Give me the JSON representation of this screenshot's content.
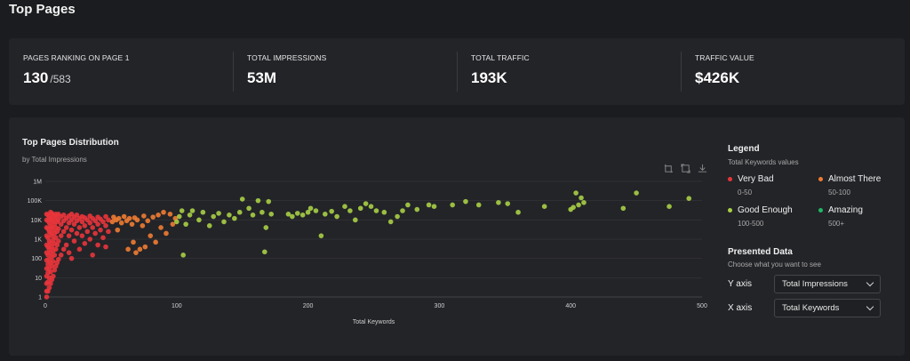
{
  "page": {
    "title": "Top Pages"
  },
  "stats": [
    {
      "label": "PAGES RANKING ON PAGE 1",
      "value": "130",
      "sub": "/583"
    },
    {
      "label": "TOTAL IMPRESSIONS",
      "value": "53M",
      "sub": ""
    },
    {
      "label": "TOTAL TRAFFIC",
      "value": "193K",
      "sub": ""
    },
    {
      "label": "TRAFFIC VALUE",
      "value": "$426K",
      "sub": ""
    }
  ],
  "distribution": {
    "title": "Top Pages Distribution",
    "subtitle": "by Total Impressions",
    "toolbar": [
      "zoom-select-icon",
      "zoom-reset-icon",
      "download-icon"
    ]
  },
  "legend": {
    "title": "Legend",
    "subtitle": "Total Keywords values",
    "items": [
      {
        "name": "Very Bad",
        "range": "0-50",
        "color": "#e8353b"
      },
      {
        "name": "Almost There",
        "range": "50-100",
        "color": "#f07c32"
      },
      {
        "name": "Good Enough",
        "range": "100-500",
        "color": "#a8cf45"
      },
      {
        "name": "Amazing",
        "range": "500+",
        "color": "#1fb866"
      }
    ]
  },
  "presented": {
    "title": "Presented Data",
    "subtitle": "Choose what you want to see",
    "y_label": "Y axis",
    "y_value": "Total Impressions",
    "x_label": "X axis",
    "x_value": "Total Keywords"
  },
  "chart_data": {
    "type": "scatter",
    "title": "Top Pages Distribution",
    "subtitle": "by Total Impressions",
    "xlabel": "Total Keywords",
    "ylabel": "",
    "xlim": [
      0,
      500
    ],
    "ylim": [
      1,
      1000000
    ],
    "y_scale": "log",
    "x_ticks": [
      0,
      100,
      200,
      300,
      400,
      500
    ],
    "y_ticks": [
      {
        "value": 1,
        "label": "1"
      },
      {
        "value": 10,
        "label": "10"
      },
      {
        "value": 100,
        "label": "100"
      },
      {
        "value": 1000,
        "label": "1K"
      },
      {
        "value": 10000,
        "label": "10K"
      },
      {
        "value": 100000,
        "label": "100K"
      },
      {
        "value": 1000000,
        "label": "1M"
      }
    ],
    "grid": true,
    "series": [
      {
        "color": "#e8353b",
        "points": [
          [
            1,
            1
          ],
          [
            1,
            2
          ],
          [
            1,
            5
          ],
          [
            1,
            12
          ],
          [
            1,
            30
          ],
          [
            1,
            80
          ],
          [
            1,
            200
          ],
          [
            1,
            500
          ],
          [
            1,
            1500
          ],
          [
            1,
            4000
          ],
          [
            1,
            10000
          ],
          [
            1,
            20000
          ],
          [
            2,
            2
          ],
          [
            2,
            6
          ],
          [
            2,
            18
          ],
          [
            2,
            50
          ],
          [
            2,
            150
          ],
          [
            2,
            400
          ],
          [
            2,
            1200
          ],
          [
            2,
            3500
          ],
          [
            2,
            9000
          ],
          [
            2,
            18000
          ],
          [
            3,
            3
          ],
          [
            3,
            10
          ],
          [
            3,
            30
          ],
          [
            3,
            90
          ],
          [
            3,
            300
          ],
          [
            3,
            800
          ],
          [
            3,
            2500
          ],
          [
            3,
            7000
          ],
          [
            3,
            15000
          ],
          [
            4,
            5
          ],
          [
            4,
            20
          ],
          [
            4,
            60
          ],
          [
            4,
            200
          ],
          [
            4,
            600
          ],
          [
            4,
            2000
          ],
          [
            4,
            5000
          ],
          [
            4,
            12000
          ],
          [
            4,
            25000
          ],
          [
            5,
            8
          ],
          [
            5,
            40
          ],
          [
            5,
            120
          ],
          [
            5,
            400
          ],
          [
            5,
            1500
          ],
          [
            5,
            4000
          ],
          [
            5,
            10000
          ],
          [
            5,
            22000
          ],
          [
            6,
            12
          ],
          [
            6,
            70
          ],
          [
            6,
            250
          ],
          [
            6,
            900
          ],
          [
            6,
            3000
          ],
          [
            6,
            8000
          ],
          [
            6,
            18000
          ],
          [
            7,
            25
          ],
          [
            7,
            150
          ],
          [
            7,
            600
          ],
          [
            7,
            2000
          ],
          [
            7,
            6000
          ],
          [
            7,
            15000
          ],
          [
            8,
            40
          ],
          [
            8,
            300
          ],
          [
            8,
            1200
          ],
          [
            8,
            4000
          ],
          [
            8,
            11000
          ],
          [
            8,
            20000
          ],
          [
            9,
            60
          ],
          [
            9,
            500
          ],
          [
            9,
            2500
          ],
          [
            9,
            8000
          ],
          [
            9,
            16000
          ],
          [
            10,
            90
          ],
          [
            10,
            800
          ],
          [
            10,
            3500
          ],
          [
            10,
            10000
          ],
          [
            10,
            20000
          ],
          [
            12,
            150
          ],
          [
            12,
            1500
          ],
          [
            12,
            6000
          ],
          [
            12,
            15000
          ],
          [
            14,
            300
          ],
          [
            14,
            2500
          ],
          [
            14,
            9000
          ],
          [
            14,
            18000
          ],
          [
            16,
            500
          ],
          [
            16,
            4000
          ],
          [
            16,
            12000
          ],
          [
            18,
            200
          ],
          [
            18,
            1500
          ],
          [
            18,
            7000
          ],
          [
            18,
            16000
          ],
          [
            20,
            100
          ],
          [
            20,
            3000
          ],
          [
            20,
            10000
          ],
          [
            20,
            20000
          ],
          [
            22,
            800
          ],
          [
            22,
            6000
          ],
          [
            22,
            14000
          ],
          [
            24,
            2000
          ],
          [
            24,
            9000
          ],
          [
            24,
            18000
          ],
          [
            26,
            300
          ],
          [
            26,
            4000
          ],
          [
            26,
            12000
          ],
          [
            28,
            1500
          ],
          [
            28,
            8000
          ],
          [
            28,
            15000
          ],
          [
            30,
            600
          ],
          [
            30,
            5000
          ],
          [
            30,
            13000
          ],
          [
            32,
            2500
          ],
          [
            32,
            10000
          ],
          [
            34,
            1000
          ],
          [
            34,
            7000
          ],
          [
            34,
            16000
          ],
          [
            36,
            150
          ],
          [
            36,
            4000
          ],
          [
            36,
            12000
          ],
          [
            38,
            2000
          ],
          [
            38,
            9000
          ],
          [
            40,
            500
          ],
          [
            40,
            6000
          ],
          [
            40,
            14000
          ],
          [
            42,
            3000
          ],
          [
            42,
            11000
          ],
          [
            44,
            1200
          ],
          [
            44,
            8000
          ],
          [
            46,
            400
          ],
          [
            46,
            5000
          ],
          [
            46,
            15000
          ],
          [
            48,
            2500
          ],
          [
            48,
            10000
          ]
        ]
      },
      {
        "color": "#f07c32",
        "points": [
          [
            51,
            8000
          ],
          [
            52,
            14000
          ],
          [
            54,
            10000
          ],
          [
            55,
            3000
          ],
          [
            56,
            12000
          ],
          [
            58,
            7000
          ],
          [
            60,
            15000
          ],
          [
            62,
            9000
          ],
          [
            63,
            300
          ],
          [
            64,
            12000
          ],
          [
            66,
            6000
          ],
          [
            67,
            700
          ],
          [
            68,
            13000
          ],
          [
            69,
            200
          ],
          [
            70,
            10000
          ],
          [
            72,
            300
          ],
          [
            74,
            5000
          ],
          [
            75,
            16000
          ],
          [
            76,
            400
          ],
          [
            78,
            9000
          ],
          [
            80,
            1500
          ],
          [
            82,
            14000
          ],
          [
            84,
            700
          ],
          [
            86,
            18000
          ],
          [
            88,
            4000
          ],
          [
            90,
            25000
          ],
          [
            92,
            2000
          ],
          [
            95,
            20000
          ],
          [
            97,
            6000
          ],
          [
            99,
            12000
          ]
        ]
      },
      {
        "color": "#a8cf45",
        "points": [
          [
            100,
            8000
          ],
          [
            102,
            15000
          ],
          [
            104,
            30000
          ],
          [
            105,
            150
          ],
          [
            107,
            6000
          ],
          [
            110,
            18000
          ],
          [
            112,
            30000
          ],
          [
            117,
            10000
          ],
          [
            120,
            25000
          ],
          [
            125,
            5000
          ],
          [
            128,
            15000
          ],
          [
            132,
            22000
          ],
          [
            136,
            8000
          ],
          [
            140,
            18000
          ],
          [
            144,
            12000
          ],
          [
            148,
            25000
          ],
          [
            150,
            120000
          ],
          [
            155,
            40000
          ],
          [
            158,
            18000
          ],
          [
            162,
            100000
          ],
          [
            165,
            25000
          ],
          [
            167,
            220
          ],
          [
            168,
            4000
          ],
          [
            170,
            90000
          ],
          [
            172,
            20000
          ],
          [
            185,
            20000
          ],
          [
            188,
            15000
          ],
          [
            192,
            22000
          ],
          [
            196,
            18000
          ],
          [
            200,
            25000
          ],
          [
            202,
            40000
          ],
          [
            206,
            30000
          ],
          [
            210,
            1500
          ],
          [
            213,
            20000
          ],
          [
            218,
            28000
          ],
          [
            222,
            15000
          ],
          [
            228,
            50000
          ],
          [
            232,
            30000
          ],
          [
            236,
            10000
          ],
          [
            240,
            40000
          ],
          [
            244,
            70000
          ],
          [
            248,
            50000
          ],
          [
            252,
            30000
          ],
          [
            258,
            25000
          ],
          [
            263,
            8000
          ],
          [
            268,
            15000
          ],
          [
            272,
            30000
          ],
          [
            276,
            60000
          ],
          [
            283,
            35000
          ],
          [
            292,
            60000
          ],
          [
            296,
            50000
          ],
          [
            310,
            60000
          ],
          [
            320,
            90000
          ],
          [
            330,
            60000
          ],
          [
            345,
            80000
          ],
          [
            352,
            70000
          ],
          [
            360,
            25000
          ],
          [
            380,
            50000
          ],
          [
            400,
            35000
          ],
          [
            402,
            45000
          ],
          [
            404,
            250000
          ],
          [
            406,
            60000
          ],
          [
            408,
            140000
          ],
          [
            410,
            80000
          ],
          [
            440,
            40000
          ],
          [
            450,
            250000
          ],
          [
            475,
            50000
          ],
          [
            490,
            130000
          ]
        ]
      }
    ]
  }
}
